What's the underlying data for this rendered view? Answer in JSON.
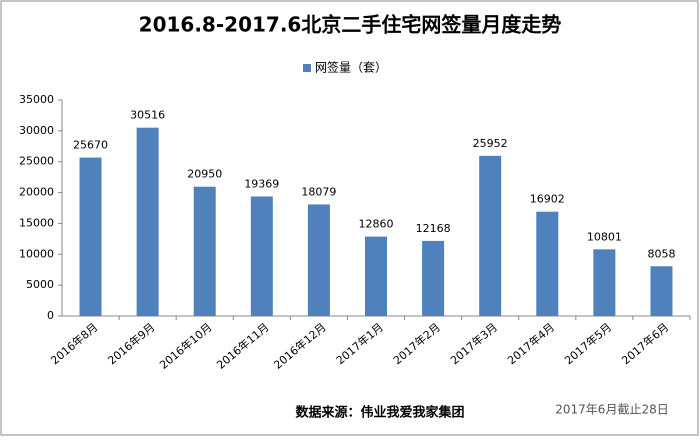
{
  "chart_data": {
    "type": "bar",
    "title": "2016.8-2017.6北京二手住宅网签量月度走势",
    "categories": [
      "2016年8月",
      "2016年9月",
      "2016年10月",
      "2016年11月",
      "2016年12月",
      "2017年1月",
      "2017年2月",
      "2017年3月",
      "2017年4月",
      "2017年5月",
      "2017年6月"
    ],
    "series": [
      {
        "name": "网签量（套）",
        "color": "#4f81bd",
        "values": [
          25670,
          30516,
          20950,
          19369,
          18079,
          12860,
          12168,
          25952,
          16902,
          10801,
          8058
        ]
      }
    ],
    "ylim": [
      0,
      35000
    ],
    "yticks": [
      0,
      5000,
      10000,
      15000,
      20000,
      25000,
      30000,
      35000
    ],
    "grid": false,
    "legend": "top",
    "source": "数据来源：伟业我爱我家集团",
    "note": "2017年6月截止28日"
  }
}
